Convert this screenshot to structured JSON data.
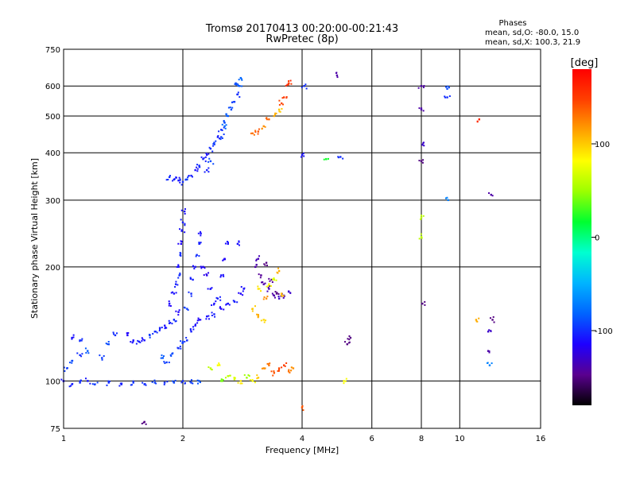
{
  "chart_data": {
    "type": "scatter",
    "title": "Tromsø 20170413 00:20:00-00:21:43",
    "subtitle": "RwPretec (8p)",
    "phases_title": "Phases",
    "phases_line1": "mean, sd,O: -80.0, 15.0",
    "phases_line2": "mean, sd,X: 100.3, 21.9",
    "xlabel": "Frequency [MHz]",
    "ylabel": "Stationary phase Virtual Height [km]",
    "xscale": "log",
    "yscale": "log",
    "xlim": [
      1,
      16
    ],
    "ylim": [
      75,
      750
    ],
    "x_ticks": [
      1,
      2,
      4,
      6,
      8,
      10,
      16
    ],
    "x_grid": [
      2,
      4,
      6,
      8,
      10
    ],
    "y_ticks": [
      75,
      100,
      200,
      300,
      400,
      500,
      600,
      750
    ],
    "y_grid": [
      100,
      200,
      300,
      400,
      500,
      600
    ],
    "grid": true,
    "colorbar": {
      "label": "[deg]",
      "range": [
        -180,
        180
      ],
      "ticks": [
        100,
        0,
        -100
      ],
      "colors": [
        "#000000",
        "#5a008f",
        "#1e00ff",
        "#0064ff",
        "#00b4ff",
        "#00ffd0",
        "#00ff30",
        "#9cff00",
        "#ffff00",
        "#ffa000",
        "#ff4000",
        "#ff0000"
      ]
    },
    "series": [
      {
        "points": [
          [
            1.0,
            100,
            -110
          ],
          [
            1.05,
            98,
            -105
          ],
          [
            1.1,
            99,
            -100
          ],
          [
            1.15,
            100,
            -108
          ],
          [
            1.2,
            98,
            -95
          ],
          [
            1.3,
            99,
            -100
          ],
          [
            1.4,
            98,
            -105
          ],
          [
            1.5,
            99,
            -98
          ],
          [
            1.6,
            98,
            -100
          ],
          [
            1.7,
            99,
            -95
          ],
          [
            1.8,
            99,
            -100
          ],
          [
            1.9,
            99,
            -92
          ],
          [
            2.0,
            100,
            -100
          ],
          [
            2.1,
            99,
            -95
          ],
          [
            2.2,
            100,
            -88
          ]
        ]
      },
      {
        "points": [
          [
            1.02,
            108,
            -95
          ],
          [
            1.05,
            113,
            -90
          ],
          [
            1.1,
            117,
            -100
          ],
          [
            1.15,
            120,
            -85
          ],
          [
            1.25,
            115,
            -95
          ],
          [
            1.3,
            125,
            -90
          ],
          [
            1.35,
            132,
            -100
          ],
          [
            1.45,
            132,
            -115
          ],
          [
            1.5,
            128,
            -110
          ],
          [
            1.55,
            127,
            -105
          ],
          [
            1.6,
            128,
            -110
          ],
          [
            1.65,
            132,
            -95
          ],
          [
            1.7,
            135,
            -100
          ],
          [
            1.75,
            138,
            -105
          ],
          [
            1.8,
            140,
            -110
          ],
          [
            1.85,
            142,
            -105
          ],
          [
            1.9,
            145,
            -100
          ],
          [
            1.95,
            152,
            -115
          ],
          [
            1.78,
            115,
            -85
          ],
          [
            1.82,
            112,
            -95
          ],
          [
            1.88,
            118,
            -90
          ],
          [
            1.95,
            122,
            -100
          ],
          [
            2.0,
            126,
            -95
          ],
          [
            2.05,
            128,
            -100
          ],
          [
            2.1,
            135,
            -105
          ],
          [
            2.15,
            140,
            -110
          ],
          [
            2.2,
            145,
            -115
          ],
          [
            2.3,
            148,
            -110
          ],
          [
            2.4,
            150,
            -105
          ],
          [
            2.5,
            155,
            -115
          ],
          [
            2.6,
            160,
            -110
          ],
          [
            2.7,
            162,
            -105
          ],
          [
            2.8,
            170,
            -115
          ],
          [
            2.85,
            175,
            -110
          ],
          [
            1.85,
            160,
            -115
          ],
          [
            1.9,
            170,
            -110
          ],
          [
            1.92,
            180,
            -105
          ],
          [
            1.95,
            200,
            -110
          ],
          [
            1.97,
            215,
            -100
          ],
          [
            1.98,
            230,
            -115
          ],
          [
            1.99,
            250,
            -110
          ],
          [
            2.0,
            262,
            -105
          ],
          [
            2.02,
            280,
            -110
          ],
          [
            1.96,
            190,
            -100
          ],
          [
            2.05,
            155,
            -95
          ],
          [
            2.1,
            170,
            -100
          ],
          [
            2.12,
            185,
            -105
          ],
          [
            2.15,
            200,
            -110
          ],
          [
            2.17,
            215,
            -100
          ],
          [
            2.2,
            230,
            -105
          ],
          [
            2.22,
            245,
            -110
          ],
          [
            2.25,
            200,
            -115
          ],
          [
            2.3,
            190,
            -120
          ],
          [
            2.35,
            175,
            -110
          ],
          [
            2.4,
            160,
            -110
          ],
          [
            2.45,
            165,
            -105
          ],
          [
            2.5,
            190,
            -110
          ],
          [
            2.55,
            210,
            -115
          ],
          [
            2.6,
            230,
            -110
          ]
        ]
      },
      {
        "points": [
          [
            1.85,
            345,
            -100
          ],
          [
            1.9,
            340,
            -105
          ],
          [
            1.95,
            338,
            -110
          ],
          [
            2.0,
            335,
            -100
          ],
          [
            2.05,
            340,
            -95
          ],
          [
            2.1,
            348,
            -105
          ],
          [
            2.15,
            360,
            -110
          ],
          [
            2.2,
            370,
            -100
          ],
          [
            2.25,
            385,
            -105
          ],
          [
            2.3,
            395,
            -110
          ],
          [
            2.35,
            410,
            -100
          ],
          [
            2.4,
            425,
            -95
          ],
          [
            2.45,
            440,
            -105
          ],
          [
            2.5,
            460,
            -100
          ],
          [
            2.55,
            480,
            -90
          ],
          [
            2.6,
            500,
            -85
          ],
          [
            2.65,
            520,
            -90
          ],
          [
            2.7,
            545,
            -95
          ],
          [
            2.75,
            570,
            -100
          ],
          [
            2.78,
            600,
            -85
          ],
          [
            2.8,
            630,
            -80
          ],
          [
            2.72,
            610,
            -90
          ],
          [
            2.5,
            440,
            -95
          ],
          [
            2.35,
            380,
            -90
          ],
          [
            2.55,
            470,
            -80
          ],
          [
            2.3,
            360,
            -105
          ]
        ]
      },
      {
        "points": [
          [
            3.05,
            200,
            -140
          ],
          [
            3.1,
            210,
            -135
          ],
          [
            3.15,
            190,
            -145
          ],
          [
            3.2,
            180,
            -140
          ],
          [
            3.3,
            175,
            -135
          ],
          [
            3.4,
            168,
            -140
          ],
          [
            3.5,
            165,
            -130
          ],
          [
            3.6,
            168,
            -135
          ],
          [
            3.7,
            172,
            -130
          ],
          [
            3.25,
            205,
            -150
          ],
          [
            3.35,
            185,
            -145
          ],
          [
            3.45,
            170,
            -150
          ]
        ]
      },
      {
        "points": [
          [
            2.35,
            108,
            60
          ],
          [
            2.45,
            110,
            80
          ],
          [
            2.5,
            100,
            40
          ],
          [
            2.6,
            103,
            60
          ],
          [
            2.7,
            101,
            70
          ],
          [
            2.8,
            100,
            90
          ],
          [
            2.9,
            102,
            50
          ],
          [
            3.0,
            100,
            80
          ],
          [
            3.1,
            102,
            100
          ],
          [
            3.2,
            108,
            120
          ],
          [
            3.3,
            110,
            130
          ],
          [
            3.4,
            105,
            140
          ],
          [
            3.5,
            108,
            145
          ],
          [
            3.6,
            110,
            150
          ],
          [
            3.7,
            106,
            130
          ],
          [
            3.8,
            108,
            120
          ]
        ]
      },
      {
        "points": [
          [
            3.0,
            155,
            100
          ],
          [
            3.1,
            148,
            110
          ],
          [
            3.2,
            145,
            95
          ],
          [
            3.25,
            165,
            120
          ],
          [
            3.1,
            175,
            90
          ],
          [
            3.3,
            180,
            80
          ],
          [
            3.4,
            185,
            70
          ],
          [
            3.5,
            195,
            110
          ],
          [
            3.55,
            170,
            105
          ]
        ]
      },
      {
        "points": [
          [
            3.0,
            450,
            130
          ],
          [
            3.1,
            455,
            140
          ],
          [
            3.2,
            470,
            120
          ],
          [
            3.3,
            490,
            135
          ],
          [
            3.4,
            500,
            110
          ],
          [
            3.5,
            520,
            100
          ],
          [
            3.6,
            560,
            150
          ],
          [
            3.7,
            610,
            160
          ],
          [
            3.55,
            540,
            145
          ]
        ]
      },
      {
        "points": [
          [
            4.0,
            395,
            -110
          ],
          [
            4.05,
            600,
            -100
          ],
          [
            4.6,
            385,
            20
          ],
          [
            4.9,
            640,
            -140
          ],
          [
            5.0,
            390,
            -100
          ],
          [
            5.2,
            125,
            -150
          ],
          [
            5.3,
            130,
            -150
          ],
          [
            5.1,
            100,
            80
          ],
          [
            8.0,
            600,
            -140
          ],
          [
            8.0,
            520,
            -140
          ],
          [
            8.05,
            420,
            -130
          ],
          [
            8.0,
            380,
            -150
          ],
          [
            8.05,
            160,
            -150
          ],
          [
            8.0,
            270,
            60
          ],
          [
            8.0,
            240,
            60
          ],
          [
            9.3,
            590,
            -90
          ],
          [
            9.3,
            560,
            -100
          ],
          [
            9.35,
            300,
            -70
          ],
          [
            11.2,
            490,
            160
          ],
          [
            11.0,
            145,
            110
          ],
          [
            11.8,
            135,
            -130
          ],
          [
            11.8,
            120,
            -140
          ],
          [
            11.9,
            110,
            -70
          ],
          [
            12.0,
            310,
            -140
          ],
          [
            12.1,
            145,
            -150
          ],
          [
            4.0,
            85,
            140
          ],
          [
            3.7,
            610,
            150
          ],
          [
            1.05,
            130,
            -110
          ],
          [
            1.1,
            128,
            -100
          ],
          [
            1.6,
            78,
            -150
          ],
          [
            2.75,
            230,
            -110
          ]
        ]
      }
    ]
  }
}
